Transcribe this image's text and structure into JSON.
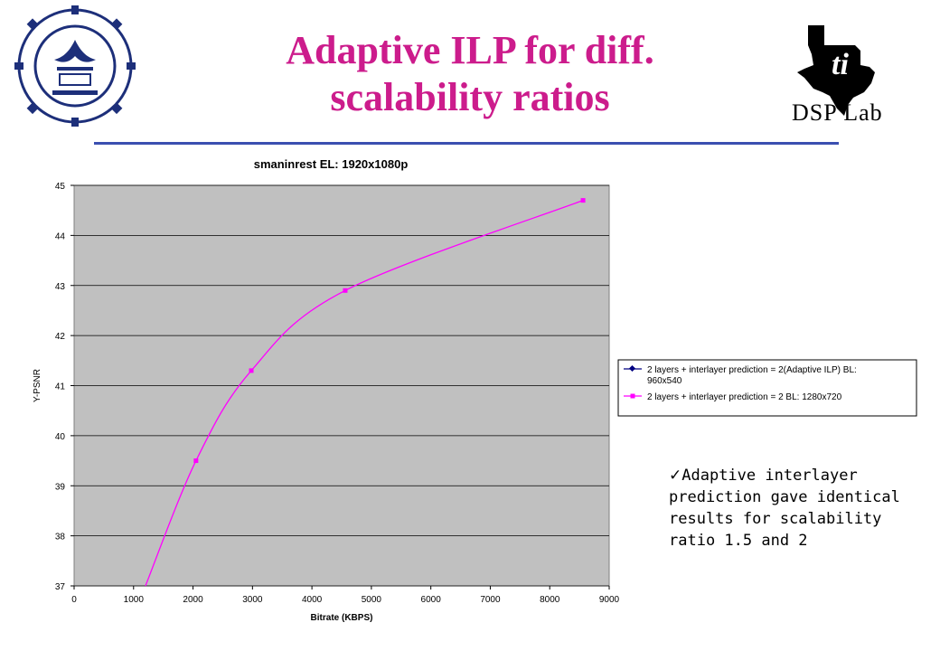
{
  "slide": {
    "title_line1": "Adaptive ILP for diff.",
    "title_line2": "scalability ratios",
    "logo_right_text": "DSP Lab",
    "accent_color": "#cc1c8c",
    "rule_color": "#3b4fb0",
    "note_icon": "checkmark-icon",
    "note_text": "Adaptive interlayer prediction gave identical results for scalability ratio 1.5 and 2"
  },
  "chart_data": {
    "type": "line",
    "title": "smaninrest EL: 1920x1080p",
    "xlabel": "Bitrate (KBPS)",
    "ylabel": "Y-PSNR",
    "xlim": [
      0,
      9000
    ],
    "ylim": [
      37,
      45
    ],
    "xticks": [
      "0",
      "1000",
      "2000",
      "3000",
      "4000",
      "5000",
      "6000",
      "7000",
      "8000",
      "9000"
    ],
    "yticks": [
      "37",
      "38",
      "39",
      "40",
      "41",
      "42",
      "43",
      "44",
      "45"
    ],
    "grid": true,
    "background": "#c0c0c0",
    "legend_position": "right",
    "series": [
      {
        "name": "2 layers + interlayer prediction = 2(Adaptive ILP) BL: 960x540",
        "color": "#000080",
        "marker": "diamond",
        "x": [],
        "y": []
      },
      {
        "name": "2 layers + interlayer prediction = 2 BL: 1280x720",
        "color": "#ff00ff",
        "marker": "square",
        "x": [
          1200,
          2050,
          2980,
          4560,
          8560
        ],
        "y": [
          37.0,
          39.5,
          41.3,
          42.9,
          44.7
        ]
      }
    ]
  }
}
